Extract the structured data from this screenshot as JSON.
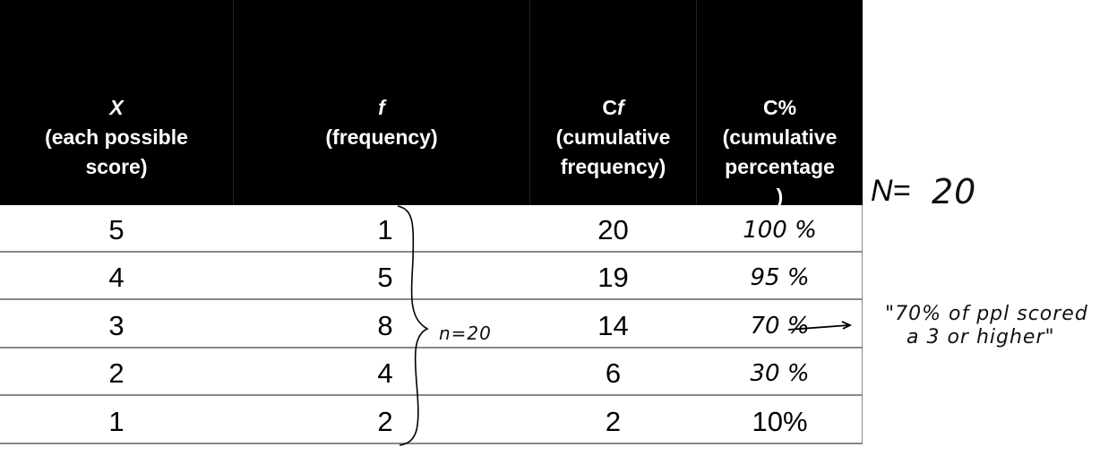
{
  "table": {
    "headers": [
      {
        "symbol": "X",
        "lines": [
          "(each possible",
          "score)"
        ]
      },
      {
        "symbol": "f",
        "lines": [
          "(frequency)"
        ]
      },
      {
        "symbol_prefix": "C",
        "symbol": "f",
        "lines": [
          "(cumulative",
          "frequency)"
        ]
      },
      {
        "symbol": "C%",
        "lines": [
          "(cumulative",
          "percentage",
          ")"
        ]
      }
    ],
    "rows": [
      {
        "x": "5",
        "f": "1",
        "cf": "20",
        "cpct": "100 %"
      },
      {
        "x": "4",
        "f": "5",
        "cf": "19",
        "cpct": "95 %"
      },
      {
        "x": "3",
        "f": "8",
        "cf": "14",
        "cpct": "70 %"
      },
      {
        "x": "2",
        "f": "4",
        "cf": "6",
        "cpct": "30 %"
      },
      {
        "x": "1",
        "f": "2",
        "cf": "2",
        "cpct": "10%"
      }
    ]
  },
  "annotations": {
    "brace_label": "n=20",
    "total_label": "N=",
    "total_value": "20",
    "note_line1": "\"70% of ppl scored",
    "note_line2": "a 3 or higher\""
  }
}
